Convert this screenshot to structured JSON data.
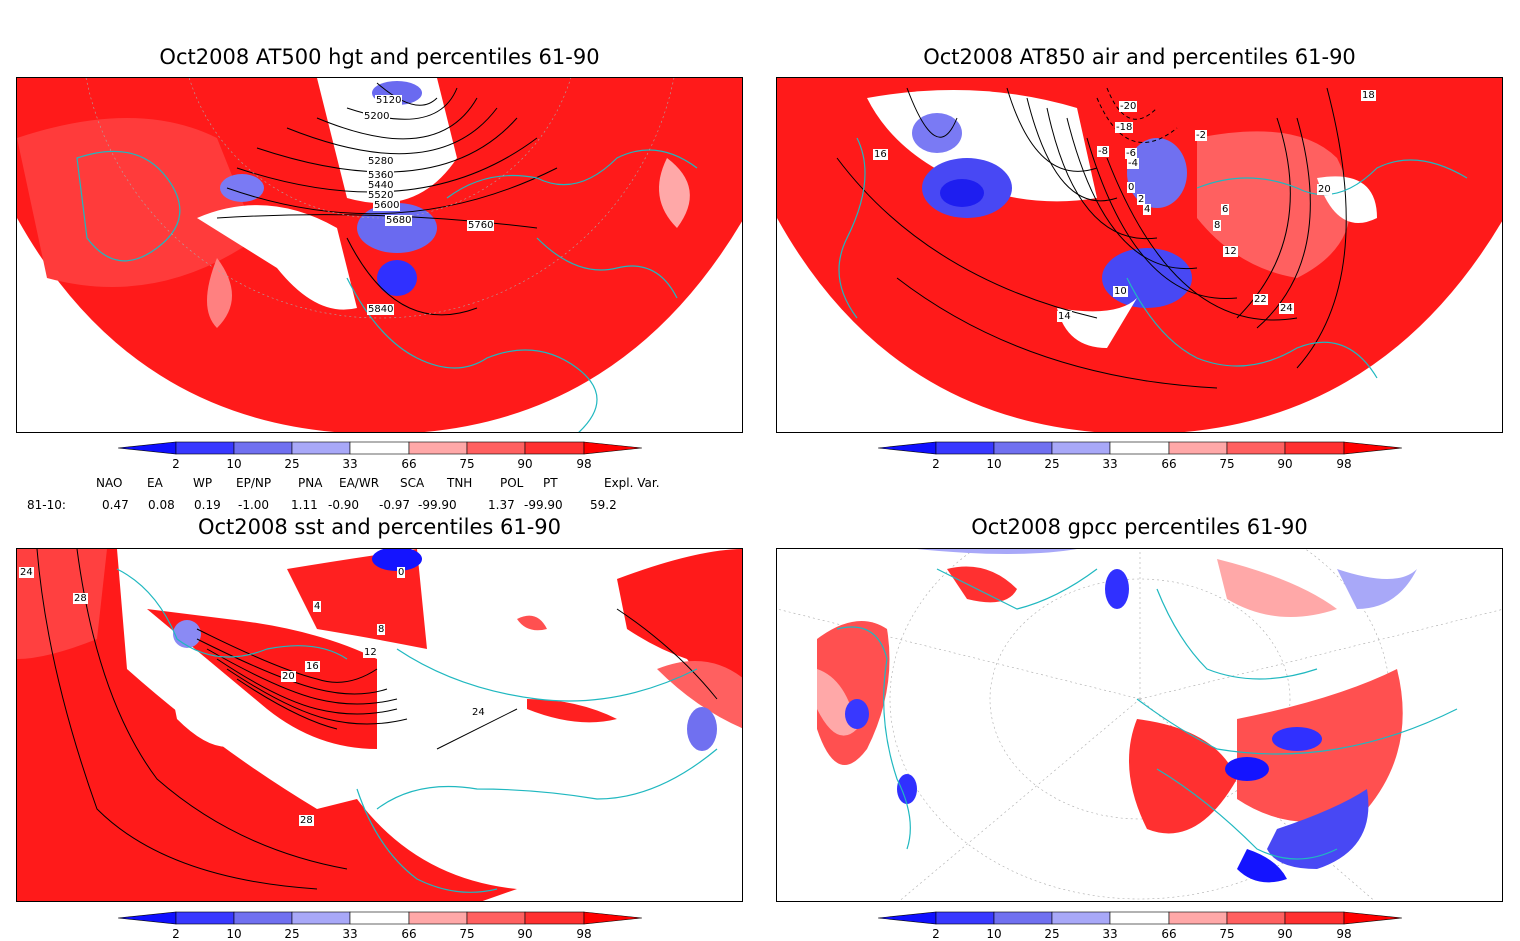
{
  "panels": [
    {
      "title": "Oct2008 AT500 hgt and percentiles 61-90",
      "contour_labels": [
        "5120",
        "5200",
        "5280",
        "5360",
        "5440",
        "5520",
        "5600",
        "5680",
        "5760",
        "5840"
      ]
    },
    {
      "title": "Oct2008 AT850 air and percentiles 61-90",
      "contour_labels": [
        "-20",
        "-18",
        "-8",
        "-6",
        "-4",
        "-2",
        "0",
        "2",
        "4",
        "6",
        "8",
        "10",
        "12",
        "14",
        "16",
        "18",
        "20",
        "22",
        "24"
      ]
    },
    {
      "title": "Oct2008 sst and percentiles 61-90",
      "contour_labels": [
        "24",
        "28",
        "0",
        "4",
        "8",
        "12",
        "16",
        "20",
        "24",
        "28"
      ]
    },
    {
      "title": "Oct2008 gpcc percentiles 61-90",
      "contour_labels": []
    }
  ],
  "colorbar": {
    "labels": [
      "2",
      "10",
      "25",
      "33",
      "66",
      "75",
      "90",
      "98"
    ],
    "colors": [
      "#1010ff",
      "#3838ff",
      "#7070f0",
      "#a8a8f8",
      "#ffffff",
      "#ffa8a8",
      "#ff6060",
      "#ff3030",
      "#ff0000"
    ]
  },
  "indices": {
    "headers": [
      "NAO",
      "EA",
      "WP",
      "EP/NP",
      "PNA",
      "EA/WR",
      "SCA",
      "TNH",
      "POL",
      "PT",
      "Expl. Var."
    ],
    "row_label": "81-10:",
    "values": [
      "0.47",
      "0.08",
      "0.19",
      "-1.00",
      "1.11",
      "-0.90",
      "-0.97",
      "-99.90",
      "1.37",
      "-99.90",
      "59.2"
    ]
  },
  "colors": {
    "coast": "#20b8c0",
    "positive": "#ff0000",
    "negative": "#3030ff",
    "contour": "#000000"
  }
}
